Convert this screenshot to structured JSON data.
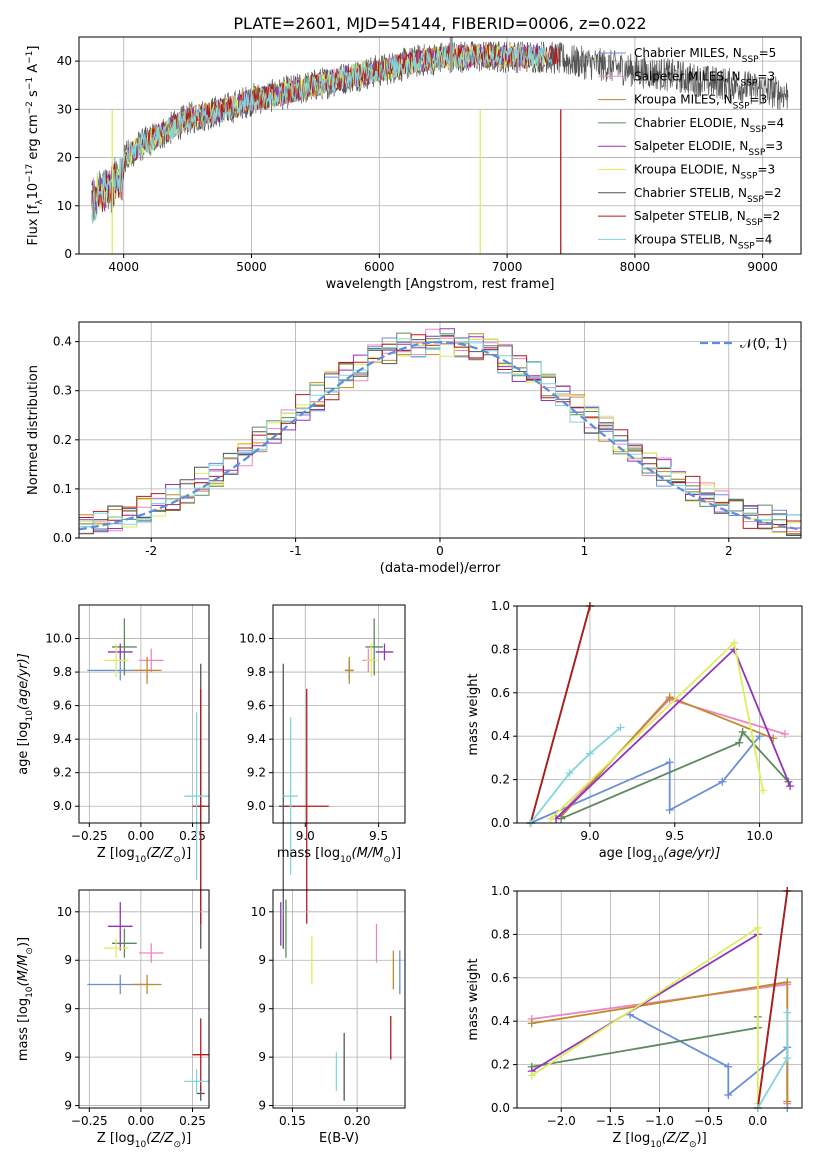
{
  "title": "PLATE=2601, MJD=54144, FIBERID=0006, z=0.022",
  "legend_series": [
    {
      "label": "Chabrier MILES, N",
      "sub": "SSP",
      "suffix": "=5",
      "color": "#6a8fd6"
    },
    {
      "label": "Salpeter MILES, N",
      "sub": "SSP",
      "suffix": "=3",
      "color": "#ea87c0"
    },
    {
      "label": "Kroupa MILES, N",
      "sub": "SSP",
      "suffix": "=3",
      "color": "#c08a2d"
    },
    {
      "label": "Chabrier ELODIE, N",
      "sub": "SSP",
      "suffix": "=4",
      "color": "#5b8a5e"
    },
    {
      "label": "Salpeter ELODIE, N",
      "sub": "SSP",
      "suffix": "=3",
      "color": "#9334b9"
    },
    {
      "label": "Kroupa ELODIE, N",
      "sub": "SSP",
      "suffix": "=3",
      "color": "#dcee5c"
    },
    {
      "label": "Chabrier STELIB, N",
      "sub": "SSP",
      "suffix": "=2",
      "color": "#555555"
    },
    {
      "label": "Salpeter STELIB, N",
      "sub": "SSP",
      "suffix": "=2",
      "color": "#b01c1c"
    },
    {
      "label": "Kroupa STELIB, N",
      "sub": "SSP",
      "suffix": "=4",
      "color": "#7fd6dc"
    }
  ],
  "chart_data": [
    {
      "id": "spectrum",
      "type": "line",
      "xlabel": "wavelength [Angstrom, rest frame]",
      "ylabel": "Flux [f",
      "ylabel_sub": "λ",
      "ylabel_rest": "10",
      "ylabel_exp": "−17",
      "ylabel_tail": " erg cm",
      "ylabel_exp2": "−2",
      "ylabel_tail2": " s",
      "ylabel_exp3": "−1",
      "ylabel_tail3": " A",
      "ylabel_exp4": "−1",
      "ylabel_end": "]",
      "xlim": [
        3650,
        9300
      ],
      "ylim": [
        0,
        45
      ],
      "xticks": [
        4000,
        5000,
        6000,
        7000,
        8000,
        9000
      ],
      "yticks": [
        0,
        10,
        20,
        30,
        40
      ],
      "continuum_x": [
        3750,
        3900,
        4100,
        4300,
        4500,
        4800,
        5000,
        5200,
        5500,
        5800,
        6000,
        6300,
        6563,
        6800,
        7000,
        7300,
        7500,
        7800,
        8000,
        8300,
        8500,
        8800,
        9000,
        9200
      ],
      "continuum_y": [
        14,
        17,
        22,
        25,
        28,
        30,
        32,
        33,
        35,
        37,
        38,
        40,
        41,
        41,
        41,
        41,
        40,
        39,
        38,
        37,
        36,
        35,
        34,
        33
      ]
    },
    {
      "id": "residuals",
      "type": "histogram",
      "xlabel": "(data-model)/error",
      "ylabel": "Normed distribution",
      "xlim": [
        -2.5,
        2.5
      ],
      "ylim": [
        0,
        0.44
      ],
      "xticks": [
        -2,
        -1,
        0,
        1,
        2
      ],
      "yticks": [
        0.0,
        0.1,
        0.2,
        0.3,
        0.4
      ],
      "gaussian_label": "𝒩(0, 1)",
      "gaussian_color": "#5b8de0",
      "bin_width": 0.1
    },
    {
      "id": "age-Z",
      "type": "errorbar",
      "xlabel": "Z [log",
      "xlabel_sub": "10",
      "xlabel_rest": "(Z/Z",
      "xlabel_sub2": "⊙",
      "xlabel_end": ")]",
      "ylabel": "age  [log",
      "ylabel_sub": "10",
      "ylabel_rest": "(age/yr)]",
      "xlim": [
        -0.3,
        0.33
      ],
      "ylim": [
        8.9,
        10.2
      ],
      "xticks": [
        -0.25,
        0.0,
        0.25
      ],
      "xtick_labels": [
        "−0.25",
        "0.00",
        "0.25"
      ],
      "yticks": [
        9.0,
        9.2,
        9.4,
        9.6,
        9.8,
        10.0
      ],
      "points": [
        {
          "x": -0.1,
          "y": 9.81,
          "xerr": 0.16,
          "yerr": 0.06,
          "c": 0
        },
        {
          "x": 0.05,
          "y": 9.87,
          "xerr": 0.06,
          "yerr": 0.07,
          "c": 1
        },
        {
          "x": 0.03,
          "y": 9.81,
          "xerr": 0.07,
          "yerr": 0.08,
          "c": 2
        },
        {
          "x": -0.08,
          "y": 9.95,
          "xerr": 0.06,
          "yerr": 0.17,
          "c": 3
        },
        {
          "x": -0.1,
          "y": 9.92,
          "xerr": 0.06,
          "yerr": 0.05,
          "c": 4
        },
        {
          "x": -0.12,
          "y": 9.87,
          "xerr": 0.06,
          "yerr": 0.1,
          "c": 5
        },
        {
          "x": 0.29,
          "y": 9.0,
          "xerr": 0.02,
          "yerr": 0.85,
          "c": 6
        },
        {
          "x": 0.29,
          "y": 9.0,
          "xerr": 0.04,
          "yerr": 0.7,
          "c": 7
        },
        {
          "x": 0.27,
          "y": 9.06,
          "xerr": 0.06,
          "yerr": 0.5,
          "c": 8
        }
      ]
    },
    {
      "id": "age-mass",
      "type": "errorbar",
      "xlabel": "mass [log",
      "xlabel_sub": "10",
      "xlabel_rest": "(M/M",
      "xlabel_sub2": "⊙",
      "xlabel_end": ")]",
      "ylabel": "",
      "xlim": [
        8.78,
        9.68
      ],
      "ylim": [
        8.9,
        10.2
      ],
      "xticks": [
        9.0,
        9.5
      ],
      "xtick_labels": [
        "9.0",
        "9.5"
      ],
      "yticks": [
        9.0,
        9.2,
        9.4,
        9.6,
        9.8,
        10.0
      ],
      "points": [
        {
          "x": 9.3,
          "y": 9.81,
          "xerr": 0.03,
          "yerr": 0.06,
          "c": 0
        },
        {
          "x": 9.43,
          "y": 9.87,
          "xerr": 0.04,
          "yerr": 0.07,
          "c": 1
        },
        {
          "x": 9.3,
          "y": 9.81,
          "xerr": 0.03,
          "yerr": 0.08,
          "c": 2
        },
        {
          "x": 9.47,
          "y": 9.95,
          "xerr": 0.06,
          "yerr": 0.17,
          "c": 3
        },
        {
          "x": 9.54,
          "y": 9.92,
          "xerr": 0.06,
          "yerr": 0.05,
          "c": 4
        },
        {
          "x": 9.45,
          "y": 9.87,
          "xerr": 0.04,
          "yerr": 0.1,
          "c": 5
        },
        {
          "x": 8.85,
          "y": 9.0,
          "xerr": 0.03,
          "yerr": 0.85,
          "c": 6
        },
        {
          "x": 9.01,
          "y": 9.0,
          "xerr": 0.15,
          "yerr": 0.7,
          "c": 7
        },
        {
          "x": 8.9,
          "y": 9.06,
          "xerr": 0.05,
          "yerr": 0.47,
          "c": 8
        }
      ]
    },
    {
      "id": "weight-age",
      "type": "line",
      "xlabel": "age  [log",
      "xlabel_sub": "10",
      "xlabel_rest": "(age/yr)]",
      "ylabel": "mass weight",
      "xlim": [
        8.57,
        10.25
      ],
      "ylim": [
        0,
        1
      ],
      "xticks": [
        9.0,
        9.5,
        10.0
      ],
      "xtick_labels": [
        "9.0",
        "9.5",
        "10.0"
      ],
      "yticks": [
        0.0,
        0.2,
        0.4,
        0.6,
        0.8,
        1.0
      ],
      "series": [
        {
          "c": 0,
          "x": [
            8.65,
            9.47,
            9.47,
            9.78,
            10.0
          ],
          "y": [
            0.0,
            0.28,
            0.06,
            0.19,
            0.4
          ]
        },
        {
          "c": 1,
          "x": [
            8.8,
            9.47,
            10.15
          ],
          "y": [
            0.02,
            0.57,
            0.41
          ]
        },
        {
          "c": 2,
          "x": [
            8.83,
            9.47,
            10.08
          ],
          "y": [
            0.03,
            0.58,
            0.39
          ]
        },
        {
          "c": 3,
          "x": [
            8.83,
            9.88,
            9.9,
            10.17
          ],
          "y": [
            0.02,
            0.37,
            0.42,
            0.19
          ]
        },
        {
          "c": 4,
          "x": [
            8.8,
            9.85,
            10.18
          ],
          "y": [
            0.02,
            0.8,
            0.17
          ]
        },
        {
          "c": 5,
          "x": [
            8.77,
            9.85,
            10.02
          ],
          "y": [
            0.02,
            0.83,
            0.15
          ]
        },
        {
          "c": 6,
          "x": [
            8.65,
            9.0
          ],
          "y": [
            0.0,
            1.0
          ]
        },
        {
          "c": 7,
          "x": [
            8.65,
            9.0
          ],
          "y": [
            0.0,
            1.0
          ]
        },
        {
          "c": 8,
          "x": [
            8.65,
            8.88,
            9.0,
            9.18
          ],
          "y": [
            0.0,
            0.23,
            0.32,
            0.44
          ]
        }
      ]
    },
    {
      "id": "mass-Z",
      "type": "errorbar",
      "xlabel": "Z [log",
      "xlabel_sub": "10",
      "xlabel_rest": "(Z/Z",
      "xlabel_sub2": "⊙",
      "xlabel_end": ")]",
      "ylabel": "mass [log",
      "ylabel_sub": "10",
      "ylabel_rest": "(M/M",
      "ylabel_sub2": "⊙",
      "ylabel_end": ")]",
      "xlim": [
        -0.3,
        0.33
      ],
      "ylim": [
        8.79,
        9.69
      ],
      "xticks": [
        -0.25,
        0.0,
        0.25
      ],
      "xtick_labels": [
        "−0.25",
        "0.00",
        "0.25"
      ],
      "yticks": [
        8.8,
        9.0,
        9.2,
        9.4,
        9.6
      ],
      "points": [
        {
          "x": -0.1,
          "y": 9.3,
          "xerr": 0.16,
          "yerr": 0.04,
          "c": 0
        },
        {
          "x": 0.05,
          "y": 9.43,
          "xerr": 0.06,
          "yerr": 0.04,
          "c": 1
        },
        {
          "x": 0.03,
          "y": 9.3,
          "xerr": 0.07,
          "yerr": 0.04,
          "c": 2
        },
        {
          "x": -0.08,
          "y": 9.47,
          "xerr": 0.06,
          "yerr": 0.06,
          "c": 3
        },
        {
          "x": -0.1,
          "y": 9.54,
          "xerr": 0.06,
          "yerr": 0.1,
          "c": 4
        },
        {
          "x": -0.12,
          "y": 9.45,
          "xerr": 0.06,
          "yerr": 0.04,
          "c": 5
        },
        {
          "x": 0.29,
          "y": 8.85,
          "xerr": 0.02,
          "yerr": 0.03,
          "c": 6
        },
        {
          "x": 0.29,
          "y": 9.01,
          "xerr": 0.04,
          "yerr": 0.15,
          "c": 7
        },
        {
          "x": 0.27,
          "y": 8.9,
          "xerr": 0.06,
          "yerr": 0.05,
          "c": 8
        }
      ]
    },
    {
      "id": "mass-EBV",
      "type": "errorbar",
      "xlabel": "E(B-V)",
      "ylabel": "",
      "xlim": [
        0.135,
        0.237
      ],
      "ylim": [
        8.79,
        9.69
      ],
      "xticks": [
        0.15,
        0.2
      ],
      "xtick_labels": [
        "0.15",
        "0.20"
      ],
      "yticks": [
        8.8,
        9.0,
        9.2,
        9.4,
        9.6
      ],
      "points": [
        {
          "x": 0.233,
          "y": 9.35,
          "xerr": 0.0,
          "yerr": 0.09,
          "c": 0
        },
        {
          "x": 0.215,
          "y": 9.47,
          "xerr": 0.0,
          "yerr": 0.08,
          "c": 1
        },
        {
          "x": 0.228,
          "y": 9.36,
          "xerr": 0.0,
          "yerr": 0.08,
          "c": 2
        },
        {
          "x": 0.145,
          "y": 9.53,
          "xerr": 0.0,
          "yerr": 0.12,
          "c": 3
        },
        {
          "x": 0.141,
          "y": 9.55,
          "xerr": 0.0,
          "yerr": 0.09,
          "c": 4
        },
        {
          "x": 0.165,
          "y": 9.4,
          "xerr": 0.0,
          "yerr": 0.1,
          "c": 5
        },
        {
          "x": 0.19,
          "y": 8.96,
          "xerr": 0.0,
          "yerr": 0.14,
          "c": 6
        },
        {
          "x": 0.226,
          "y": 9.08,
          "xerr": 0.0,
          "yerr": 0.09,
          "c": 7
        },
        {
          "x": 0.184,
          "y": 8.94,
          "xerr": 0.0,
          "yerr": 0.08,
          "c": 8
        }
      ]
    },
    {
      "id": "weight-Z",
      "type": "line",
      "xlabel": "Z [log",
      "xlabel_sub": "10",
      "xlabel_rest": "(Z/Z",
      "xlabel_sub2": "⊙",
      "xlabel_end": ")]",
      "ylabel": "mass weight",
      "xlim": [
        -2.45,
        0.45
      ],
      "ylim": [
        0,
        1
      ],
      "xticks": [
        -2.0,
        -1.5,
        -1.0,
        -0.5,
        0.0
      ],
      "xtick_labels": [
        "−2.0",
        "−1.5",
        "−1.0",
        "−0.5",
        "0.0"
      ],
      "yticks": [
        0.0,
        0.2,
        0.4,
        0.6,
        0.8,
        1.0
      ],
      "series": [
        {
          "c": 0,
          "x": [
            -1.3,
            -0.3,
            -0.3,
            0.3,
            0.3
          ],
          "y": [
            0.43,
            0.19,
            0.06,
            0.28,
            0.0
          ]
        },
        {
          "c": 1,
          "x": [
            -2.3,
            0.3,
            0.3
          ],
          "y": [
            0.41,
            0.57,
            0.02
          ]
        },
        {
          "c": 2,
          "x": [
            -2.3,
            0.3,
            0.3
          ],
          "y": [
            0.39,
            0.58,
            0.03
          ]
        },
        {
          "c": 3,
          "x": [
            -2.3,
            0.0,
            0.0
          ],
          "y": [
            0.19,
            0.37,
            0.42
          ]
        },
        {
          "c": 4,
          "x": [
            -2.3,
            0.0
          ],
          "y": [
            0.17,
            0.8
          ]
        },
        {
          "c": 5,
          "x": [
            -2.3,
            0.0,
            0.0
          ],
          "y": [
            0.15,
            0.83,
            0.02
          ]
        },
        {
          "c": 6,
          "x": [
            0.0,
            0.3
          ],
          "y": [
            0.0,
            1.0
          ]
        },
        {
          "c": 7,
          "x": [
            0.0,
            0.3
          ],
          "y": [
            0.0,
            1.0
          ]
        },
        {
          "c": 8,
          "x": [
            0.0,
            0.3,
            0.3
          ],
          "y": [
            0.0,
            0.23,
            0.44
          ]
        }
      ]
    }
  ]
}
